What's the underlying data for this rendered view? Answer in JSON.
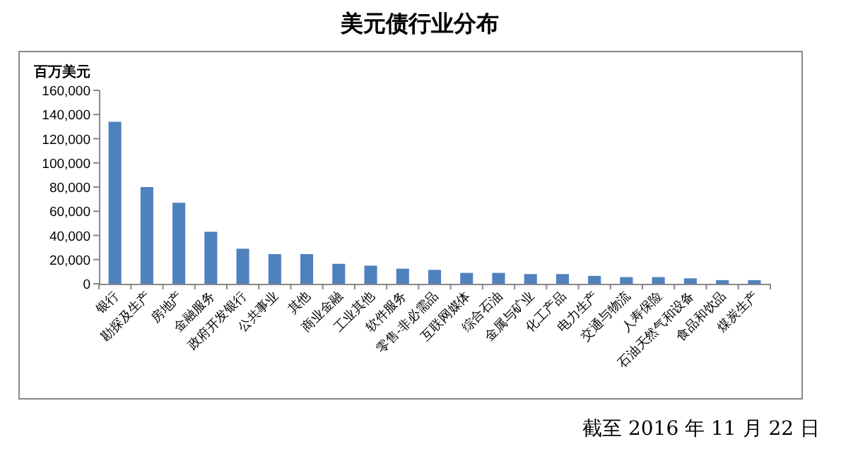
{
  "chart_data": {
    "type": "bar",
    "title": "美元债行业分布",
    "ylabel": "百万美元",
    "categories": [
      "银行",
      "勘探及生产",
      "房地产",
      "金融服务",
      "政府开发银行",
      "公共事业",
      "其他",
      "商业金融",
      "工业其他",
      "软件服务",
      "零售-非必需品",
      "互联网媒体",
      "综合石油",
      "金属与矿业",
      "化工产品",
      "电力生产",
      "交通与物流",
      "人寿保险",
      "石油天然气和设备",
      "食品和饮品",
      "煤炭生产"
    ],
    "values": [
      134000,
      80000,
      67000,
      43000,
      29000,
      24500,
      24500,
      16500,
      15000,
      12500,
      11500,
      9000,
      9000,
      8000,
      8000,
      6500,
      5500,
      5500,
      4500,
      3000,
      3000
    ],
    "color": "#4f81bd",
    "ylim": [
      0,
      160000
    ],
    "yticks": [
      {
        "value": 0,
        "label": "0"
      },
      {
        "value": 20000,
        "label": "20,000"
      },
      {
        "value": 40000,
        "label": "40,000"
      },
      {
        "value": 60000,
        "label": "60,000"
      },
      {
        "value": 80000,
        "label": "80,000"
      },
      {
        "value": 100000,
        "label": "100,000"
      },
      {
        "value": 120000,
        "label": "120,000"
      },
      {
        "value": 140000,
        "label": "140,000"
      },
      {
        "value": 160000,
        "label": "160,000"
      }
    ],
    "annotations": [
      "截至 2016 年 11 月 22 日"
    ]
  }
}
